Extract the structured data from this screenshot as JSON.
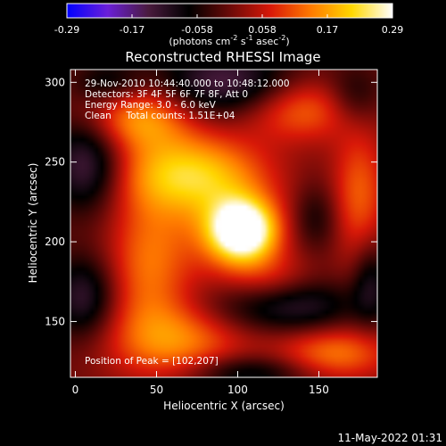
{
  "chart_data": {
    "type": "heatmap",
    "title": "Reconstructed RHESSI Image",
    "xlabel": "Heliocentric X (arcsec)",
    "ylabel": "Heliocentric Y (arcsec)",
    "xlim": [
      -3,
      186
    ],
    "ylim": [
      115,
      308
    ],
    "x_ticks": [
      0,
      50,
      100,
      150
    ],
    "y_ticks": [
      150,
      200,
      250,
      300
    ],
    "colorbar": {
      "range": [
        -0.29,
        0.29
      ],
      "ticks": [
        "-0.29",
        "-0.17",
        "-0.058",
        "0.058",
        "0.17",
        "0.29"
      ],
      "label_parts": [
        "(photons cm",
        "-2",
        " s",
        "-1",
        " asec",
        "-2",
        ")"
      ],
      "colors": [
        "#0000ff",
        "#6a1fd8",
        "#4a1b3e",
        "#000000",
        "#6a0a08",
        "#d81808",
        "#ff7a00",
        "#ffd700",
        "#ffffff"
      ]
    },
    "annotations": [
      "29-Nov-2010 10:44:40.000 to 10:48:12.000",
      "Detectors: 3F 4F 5F 6F 7F 8F, Att 0",
      "Energy Range: 3.0 - 6.0 keV",
      "Clean     Total counts: 1.51E+04"
    ],
    "peak_label": "Position of Peak = [102,207]",
    "peak": [
      102,
      207
    ],
    "blobs": [
      {
        "x": 103,
        "y": 207,
        "amp": 0.31,
        "sx": 14,
        "sy": 13
      },
      {
        "x": 95,
        "y": 210,
        "amp": 0.1,
        "sx": 24,
        "sy": 24
      },
      {
        "x": 68,
        "y": 243,
        "amp": 0.2,
        "sx": 32,
        "sy": 18
      },
      {
        "x": 40,
        "y": 278,
        "amp": 0.16,
        "sx": 22,
        "sy": 14
      },
      {
        "x": 140,
        "y": 283,
        "amp": 0.13,
        "sx": 25,
        "sy": 14
      },
      {
        "x": 45,
        "y": 187,
        "amp": 0.13,
        "sx": 18,
        "sy": 30
      },
      {
        "x": 62,
        "y": 138,
        "amp": 0.15,
        "sx": 30,
        "sy": 18
      },
      {
        "x": 120,
        "y": 170,
        "amp": 0.1,
        "sx": 20,
        "sy": 15
      },
      {
        "x": 175,
        "y": 230,
        "amp": 0.12,
        "sx": 12,
        "sy": 30
      },
      {
        "x": 160,
        "y": 130,
        "amp": 0.14,
        "sx": 25,
        "sy": 12
      },
      {
        "x": 7,
        "y": 248,
        "amp": -0.16,
        "sx": 16,
        "sy": 20
      },
      {
        "x": 92,
        "y": 300,
        "amp": -0.15,
        "sx": 30,
        "sy": 15
      },
      {
        "x": 172,
        "y": 290,
        "amp": -0.09,
        "sx": 12,
        "sy": 14
      },
      {
        "x": 5,
        "y": 165,
        "amp": -0.13,
        "sx": 14,
        "sy": 18
      },
      {
        "x": 125,
        "y": 160,
        "amp": -0.18,
        "sx": 30,
        "sy": 12
      },
      {
        "x": 148,
        "y": 215,
        "amp": -0.07,
        "sx": 10,
        "sy": 15
      },
      {
        "x": 105,
        "y": 118,
        "amp": -0.11,
        "sx": 28,
        "sy": 8
      },
      {
        "x": 182,
        "y": 175,
        "amp": -0.1,
        "sx": 8,
        "sy": 18
      },
      {
        "x": 20,
        "y": 300,
        "amp": -0.08,
        "sx": 15,
        "sy": 10
      }
    ]
  },
  "footer": {
    "timestamp": "11-May-2022 01:31"
  }
}
